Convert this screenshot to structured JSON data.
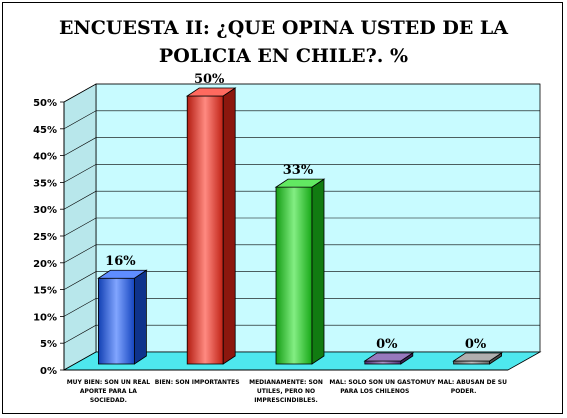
{
  "chart_data": {
    "type": "bar",
    "title_lines": [
      "ENCUESTA II: ¿QUE OPINA USTED DE LA",
      "POLICIA EN CHILE?. %"
    ],
    "categories": [
      "MUY BIEN: SON UN REAL APORTE PARA LA SOCIEDAD.",
      "BIEN: SON IMPORTANTES",
      "MEDIANAMENTE: SON UTILES, PERO NO IMPRESCINDIBLES.",
      "MAL: SOLO SON UN GASTO PARA LOS CHILENOS",
      "MUY MAL: ABUSAN DE SU PODER."
    ],
    "values": [
      16,
      50,
      33,
      0,
      0
    ],
    "value_labels": [
      "16%",
      "50%",
      "33%",
      "0%",
      "0%"
    ],
    "colors": [
      "#1a5cff",
      "#ff2a1a",
      "#1ee01e",
      "#6b3fa0",
      "#8c8c8c"
    ],
    "yticks": [
      "0%",
      "5%",
      "10%",
      "15%",
      "20%",
      "25%",
      "30%",
      "35%",
      "40%",
      "45%",
      "50%"
    ],
    "ylim": [
      0,
      50
    ],
    "grid": true,
    "wall_color": "#c8fbff",
    "floor_color": "#4ee8ee"
  }
}
